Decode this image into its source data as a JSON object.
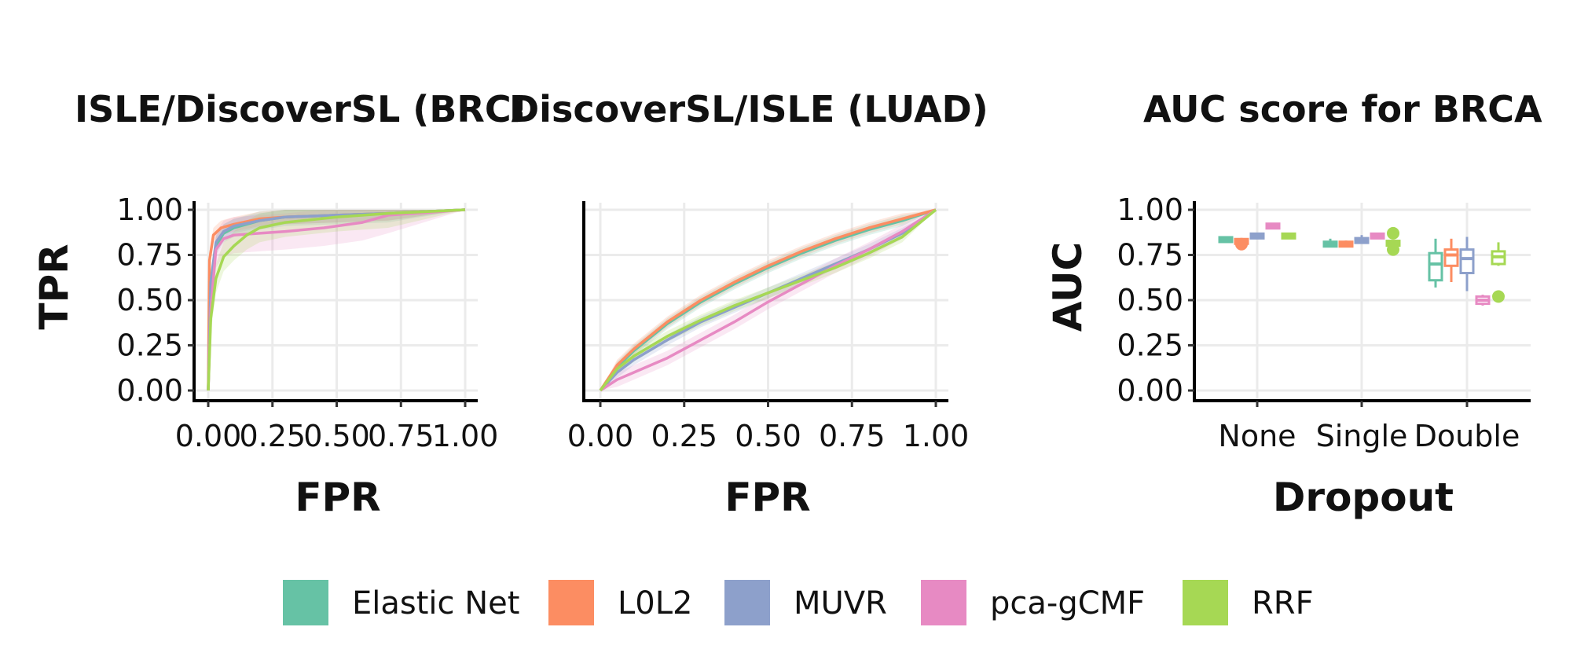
{
  "colors": {
    "Elastic Net": "#66c2a5",
    "L0L2": "#fc8d62",
    "MUVR": "#8da0cb",
    "pca-gCMF": "#e78ac3",
    "RRF": "#a6d854"
  },
  "legend": {
    "items": [
      "Elastic Net",
      "L0L2",
      "MUVR",
      "pca-gCMF",
      "RRF"
    ],
    "placement": "bottom"
  },
  "chart_data": [
    {
      "type": "line",
      "title": "ISLE/DiscoverSL (BRCA)",
      "xlabel": "FPR",
      "ylabel": "TPR",
      "xlim": [
        0,
        1
      ],
      "ylim": [
        0,
        1
      ],
      "xticks": [
        "0.00",
        "0.25",
        "0.50",
        "0.75",
        "1.00"
      ],
      "yticks": [
        "0.00",
        "0.25",
        "0.50",
        "0.75",
        "1.00"
      ],
      "grid": true,
      "ribbon": true,
      "series": [
        {
          "name": "Elastic Net",
          "x": [
            0,
            0.01,
            0.03,
            0.06,
            0.1,
            0.2,
            0.3,
            0.5,
            0.7,
            1.0
          ],
          "y": [
            0,
            0.55,
            0.8,
            0.87,
            0.9,
            0.94,
            0.96,
            0.97,
            0.98,
            1.0
          ],
          "band": 0.05
        },
        {
          "name": "L0L2",
          "x": [
            0,
            0.005,
            0.02,
            0.05,
            0.1,
            0.2,
            0.3,
            0.5,
            0.7,
            1.0
          ],
          "y": [
            0,
            0.72,
            0.86,
            0.9,
            0.92,
            0.95,
            0.96,
            0.97,
            0.98,
            1.0
          ],
          "band": 0.04
        },
        {
          "name": "MUVR",
          "x": [
            0,
            0.01,
            0.03,
            0.06,
            0.1,
            0.2,
            0.3,
            0.5,
            0.7,
            1.0
          ],
          "y": [
            0,
            0.6,
            0.82,
            0.88,
            0.91,
            0.94,
            0.96,
            0.97,
            0.98,
            1.0
          ],
          "band": 0.04
        },
        {
          "name": "pca-gCMF",
          "x": [
            0,
            0.01,
            0.03,
            0.06,
            0.1,
            0.2,
            0.3,
            0.45,
            0.6,
            0.7,
            1.0
          ],
          "y": [
            0,
            0.45,
            0.78,
            0.84,
            0.86,
            0.87,
            0.88,
            0.9,
            0.93,
            0.97,
            1.0
          ],
          "band": 0.1
        },
        {
          "name": "RRF",
          "x": [
            0,
            0.01,
            0.03,
            0.06,
            0.1,
            0.15,
            0.2,
            0.3,
            0.5,
            0.7,
            1.0
          ],
          "y": [
            0,
            0.4,
            0.62,
            0.74,
            0.8,
            0.86,
            0.9,
            0.93,
            0.96,
            0.98,
            1.0
          ],
          "band": 0.08
        }
      ]
    },
    {
      "type": "line",
      "title": "DiscoverSL/ISLE (LUAD)",
      "xlabel": "FPR",
      "ylabel": "",
      "xlim": [
        0,
        1
      ],
      "ylim": [
        0,
        1
      ],
      "xticks": [
        "0.00",
        "0.25",
        "0.50",
        "0.75",
        "1.00"
      ],
      "yticks": [],
      "grid": true,
      "ribbon": true,
      "series": [
        {
          "name": "Elastic Net",
          "x": [
            0,
            0.05,
            0.1,
            0.2,
            0.3,
            0.4,
            0.5,
            0.6,
            0.7,
            0.8,
            0.9,
            1.0
          ],
          "y": [
            0,
            0.13,
            0.22,
            0.37,
            0.49,
            0.59,
            0.68,
            0.76,
            0.83,
            0.89,
            0.94,
            1.0
          ],
          "band": 0.03
        },
        {
          "name": "L0L2",
          "x": [
            0,
            0.05,
            0.1,
            0.2,
            0.3,
            0.4,
            0.5,
            0.6,
            0.7,
            0.8,
            0.9,
            1.0
          ],
          "y": [
            0,
            0.14,
            0.23,
            0.38,
            0.5,
            0.6,
            0.69,
            0.77,
            0.84,
            0.9,
            0.95,
            1.0
          ],
          "band": 0.03
        },
        {
          "name": "MUVR",
          "x": [
            0,
            0.05,
            0.1,
            0.2,
            0.3,
            0.4,
            0.5,
            0.6,
            0.7,
            0.8,
            0.9,
            1.0
          ],
          "y": [
            0,
            0.1,
            0.17,
            0.28,
            0.38,
            0.46,
            0.54,
            0.62,
            0.7,
            0.78,
            0.87,
            1.0
          ],
          "band": 0.03
        },
        {
          "name": "pca-gCMF",
          "x": [
            0,
            0.05,
            0.1,
            0.2,
            0.3,
            0.4,
            0.5,
            0.6,
            0.7,
            0.8,
            0.9,
            1.0
          ],
          "y": [
            0,
            0.06,
            0.1,
            0.18,
            0.28,
            0.38,
            0.49,
            0.59,
            0.69,
            0.78,
            0.88,
            1.0
          ],
          "band": 0.04
        },
        {
          "name": "RRF",
          "x": [
            0,
            0.05,
            0.1,
            0.2,
            0.3,
            0.4,
            0.5,
            0.6,
            0.7,
            0.8,
            0.9,
            1.0
          ],
          "y": [
            0,
            0.12,
            0.19,
            0.3,
            0.39,
            0.47,
            0.54,
            0.61,
            0.68,
            0.76,
            0.85,
            1.0
          ],
          "band": 0.03
        }
      ]
    },
    {
      "type": "box",
      "title": "AUC score for BRCA",
      "xlabel": "Dropout",
      "ylabel": "AUC",
      "categories": [
        "None",
        "Single",
        "Double"
      ],
      "ylim": [
        0,
        1
      ],
      "yticks": [
        "0.00",
        "0.25",
        "0.50",
        "0.75",
        "1.00"
      ],
      "grid": true,
      "series": [
        {
          "name": "Elastic Net",
          "boxes": [
            {
              "min": 0.83,
              "q1": 0.83,
              "median": 0.835,
              "q3": 0.84,
              "max": 0.84,
              "outliers": []
            },
            {
              "min": 0.8,
              "q1": 0.8,
              "median": 0.81,
              "q3": 0.82,
              "max": 0.84,
              "outliers": []
            },
            {
              "min": 0.57,
              "q1": 0.61,
              "median": 0.7,
              "q3": 0.76,
              "max": 0.84,
              "outliers": []
            }
          ]
        },
        {
          "name": "L0L2",
          "boxes": [
            {
              "min": 0.82,
              "q1": 0.82,
              "median": 0.825,
              "q3": 0.83,
              "max": 0.83,
              "outliers": [
                0.81
              ]
            },
            {
              "min": 0.8,
              "q1": 0.8,
              "median": 0.81,
              "q3": 0.82,
              "max": 0.83,
              "outliers": []
            },
            {
              "min": 0.6,
              "q1": 0.69,
              "median": 0.75,
              "q3": 0.78,
              "max": 0.84,
              "outliers": []
            }
          ]
        },
        {
          "name": "MUVR",
          "boxes": [
            {
              "min": 0.85,
              "q1": 0.85,
              "median": 0.855,
              "q3": 0.86,
              "max": 0.86,
              "outliers": []
            },
            {
              "min": 0.82,
              "q1": 0.82,
              "median": 0.83,
              "q3": 0.84,
              "max": 0.86,
              "outliers": []
            },
            {
              "min": 0.55,
              "q1": 0.65,
              "median": 0.73,
              "q3": 0.78,
              "max": 0.85,
              "outliers": []
            }
          ]
        },
        {
          "name": "pca-gCMF",
          "boxes": [
            {
              "min": 0.9,
              "q1": 0.9,
              "median": 0.91,
              "q3": 0.92,
              "max": 0.92,
              "outliers": []
            },
            {
              "min": 0.85,
              "q1": 0.85,
              "median": 0.855,
              "q3": 0.86,
              "max": 0.86,
              "outliers": []
            },
            {
              "min": 0.47,
              "q1": 0.48,
              "median": 0.5,
              "q3": 0.52,
              "max": 0.53,
              "outliers": []
            }
          ]
        },
        {
          "name": "RRF",
          "boxes": [
            {
              "min": 0.85,
              "q1": 0.85,
              "median": 0.855,
              "q3": 0.86,
              "max": 0.86,
              "outliers": []
            },
            {
              "min": 0.81,
              "q1": 0.81,
              "median": 0.815,
              "q3": 0.82,
              "max": 0.82,
              "outliers": [
                0.87,
                0.78
              ]
            },
            {
              "min": 0.69,
              "q1": 0.7,
              "median": 0.74,
              "q3": 0.77,
              "max": 0.82,
              "outliers": [
                0.52
              ]
            }
          ]
        }
      ]
    }
  ]
}
